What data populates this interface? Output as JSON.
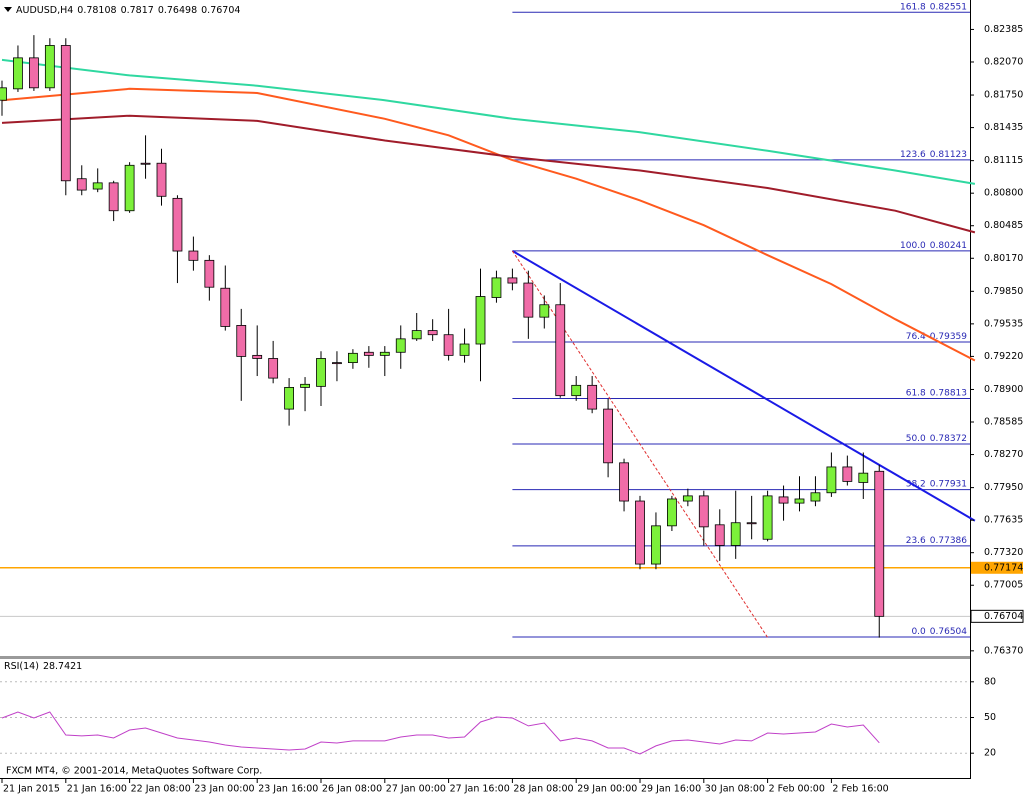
{
  "chart_data": {
    "type": "candlestick",
    "symbol": "AUDUSD,H4",
    "categories": [
      "21 Jan 2015",
      null,
      null,
      null,
      "21 Jan 16:00",
      null,
      null,
      null,
      "22 Jan 08:00",
      null,
      null,
      null,
      "23 Jan 00:00",
      null,
      null,
      null,
      "23 Jan 16:00",
      null,
      null,
      null,
      "26 Jan 08:00",
      null,
      null,
      null,
      "27 Jan 00:00",
      null,
      null,
      null,
      "27 Jan 16:00",
      null,
      null,
      null,
      "28 Jan 08:00",
      null,
      null,
      null,
      "29 Jan 00:00",
      null,
      null,
      null,
      "29 Jan 16:00",
      null,
      null,
      null,
      "30 Jan 08:00",
      null,
      null,
      null,
      "2 Feb 00:00",
      null,
      null,
      null,
      "2 Feb 16:00",
      null,
      null,
      null
    ],
    "open": [
      0.817,
      0.8181,
      0.8211,
      0.8182,
      0.8223,
      0.8094,
      0.8084,
      0.809,
      0.8063,
      0.8109,
      0.8109,
      0.8075,
      0.8024,
      0.8015,
      0.7988,
      0.7952,
      0.7923,
      0.792,
      0.7871,
      0.7892,
      0.7893,
      0.7916,
      0.7916,
      0.7926,
      0.7923,
      0.7926,
      0.7939,
      0.7947,
      0.7943,
      0.7923,
      0.7934,
      0.7979,
      0.7998,
      0.7993,
      0.796,
      0.7972,
      0.7884,
      0.7894,
      0.7871,
      0.7819,
      0.7782,
      0.7721,
      0.7758,
      0.7782,
      0.7787,
      0.7759,
      0.7739,
      0.7761,
      0.7745,
      0.7786,
      0.778,
      0.7782,
      0.779,
      0.7815,
      0.78,
      0.78108
    ],
    "high": [
      0.8189,
      0.8223,
      0.8233,
      0.823,
      0.823,
      0.8107,
      0.8104,
      0.8092,
      0.811,
      0.8136,
      0.8123,
      0.8078,
      0.8038,
      0.802,
      0.801,
      0.7968,
      0.7952,
      0.7937,
      0.7901,
      0.7902,
      0.7927,
      0.7927,
      0.7929,
      0.7932,
      0.7932,
      0.7952,
      0.7964,
      0.7958,
      0.7968,
      0.7949,
      0.8007,
      0.8005,
      0.8007,
      0.8005,
      0.7981,
      0.7993,
      0.7903,
      0.7903,
      0.7881,
      0.7823,
      0.7787,
      0.7771,
      0.7787,
      0.7794,
      0.7792,
      0.7774,
      0.7792,
      0.7787,
      0.7792,
      0.7797,
      0.7806,
      0.7806,
      0.7829,
      0.7826,
      0.7829,
      0.7817
    ],
    "low": [
      0.8155,
      0.8178,
      0.8179,
      0.8179,
      0.8078,
      0.8078,
      0.8081,
      0.8053,
      0.8061,
      0.8094,
      0.8068,
      0.7993,
      0.8005,
      0.7976,
      0.7947,
      0.7879,
      0.7903,
      0.7896,
      0.7855,
      0.7869,
      0.7874,
      0.7898,
      0.791,
      0.7911,
      0.7903,
      0.791,
      0.7937,
      0.7937,
      0.7918,
      0.7916,
      0.7898,
      0.7974,
      0.7986,
      0.7939,
      0.7949,
      0.7882,
      0.7879,
      0.7867,
      0.7805,
      0.7772,
      0.7716,
      0.7716,
      0.7753,
      0.7777,
      0.7739,
      0.7724,
      0.7726,
      0.7745,
      0.7743,
      0.7763,
      0.7772,
      0.7777,
      0.7786,
      0.7797,
      0.7784,
      0.76498
    ],
    "close": [
      0.8182,
      0.8211,
      0.8182,
      0.8223,
      0.8092,
      0.8083,
      0.809,
      0.8063,
      0.8107,
      0.8108,
      0.8077,
      0.8024,
      0.8015,
      0.7989,
      0.7951,
      0.7922,
      0.792,
      0.7901,
      0.7892,
      0.7895,
      0.792,
      0.7915,
      0.7925,
      0.7923,
      0.7926,
      0.7939,
      0.7947,
      0.7943,
      0.7923,
      0.7934,
      0.798,
      0.7998,
      0.7993,
      0.796,
      0.7972,
      0.7884,
      0.7894,
      0.7871,
      0.7819,
      0.7782,
      0.7721,
      0.7758,
      0.7784,
      0.7787,
      0.7757,
      0.7739,
      0.7761,
      0.776,
      0.7787,
      0.778,
      0.7784,
      0.779,
      0.7815,
      0.7801,
      0.7809,
      0.76704
    ],
    "up_color": "#7cf03a",
    "down_color": "#f06ca8",
    "ylim": [
      0.7632,
      0.8267
    ],
    "yticks": [
      0.82385,
      {
        "value": 0.8207,
        "label": "0.82070"
      },
      {
        "value": 0.8175,
        "label": "0.81750"
      },
      0.81435,
      0.81115,
      {
        "value": 0.808,
        "label": "0.80800"
      },
      0.80485,
      {
        "value": 0.8017,
        "label": "0.80170"
      },
      {
        "value": 0.7985,
        "label": "0.79850"
      },
      0.79535,
      {
        "value": 0.7922,
        "label": "0.79220"
      },
      {
        "value": 0.789,
        "label": "0.78900"
      },
      0.78585,
      {
        "value": 0.7827,
        "label": "0.78270"
      },
      {
        "value": 0.7795,
        "label": "0.77950"
      },
      0.77635,
      {
        "value": 0.7732,
        "label": "0.77320"
      },
      0.77005,
      {
        "value": 0.7637,
        "label": "0.76370"
      }
    ],
    "moving_averages": [
      {
        "color": "#2fd8a0",
        "x": [
          0,
          8,
          16,
          24,
          32,
          40,
          48,
          56,
          61
        ],
        "values": [
          0.8209,
          0.8194,
          0.8184,
          0.817,
          0.8152,
          0.8139,
          0.8121,
          0.8102,
          0.8089
        ]
      },
      {
        "color": "#ff5a1e",
        "x": [
          0,
          8,
          16,
          24,
          28,
          32,
          36,
          40,
          44,
          48,
          52,
          56,
          61
        ],
        "values": [
          0.817,
          0.8181,
          0.8177,
          0.8152,
          0.8136,
          0.8112,
          0.8094,
          0.8073,
          0.8049,
          0.802,
          0.7992,
          0.7958,
          0.7918
        ]
      },
      {
        "color": "#a01c2a",
        "x": [
          0,
          8,
          16,
          24,
          32,
          40,
          48,
          56,
          61
        ],
        "values": [
          0.8148,
          0.8155,
          0.815,
          0.8131,
          0.8115,
          0.8102,
          0.8085,
          0.8063,
          0.8042
        ]
      }
    ],
    "trendlines": [
      {
        "color": "#1a1ae6",
        "dashed": false,
        "x": [
          32,
          61
        ],
        "values": [
          0.80241,
          0.7763
        ]
      },
      {
        "color": "#e03030",
        "dashed": true,
        "x": [
          32,
          48
        ],
        "values": [
          0.80241,
          0.765
        ]
      }
    ],
    "fibonacci": {
      "color": "#2828b4",
      "start": 32,
      "levels": [
        {
          "level": "161.8",
          "price": 0.82551
        },
        {
          "level": "123.6",
          "price": 0.81123
        },
        {
          "level": "100.0",
          "price": 0.80241
        },
        {
          "level": "76.4",
          "price": 0.79359
        },
        {
          "level": "61.8",
          "price": 0.78813
        },
        {
          "level": "50.0",
          "price": 0.78372
        },
        {
          "level": "38.2",
          "price": 0.77931
        },
        {
          "level": "23.6",
          "price": 0.77386
        },
        {
          "level": "0.0",
          "price": 0.76504
        }
      ]
    },
    "hline": {
      "value": 0.77174,
      "color": "#ffa500"
    },
    "rsi": {
      "label": "RSI(14)",
      "color": "#c040c8",
      "ylim": [
        0,
        100
      ],
      "yticks": [
        80,
        50,
        20
      ],
      "values": [
        49.6,
        54.6,
        49.6,
        54.6,
        35.3,
        34.5,
        35.3,
        32.8,
        39.5,
        41.2,
        37.0,
        32.8,
        31.1,
        29.4,
        26.9,
        25.2,
        24.4,
        23.5,
        22.7,
        23.5,
        29.4,
        28.6,
        30.3,
        30.3,
        30.3,
        33.6,
        35.3,
        35.3,
        32.8,
        33.6,
        46.2,
        50.4,
        49.6,
        42.9,
        45.4,
        30.3,
        32.8,
        30.3,
        24.4,
        24.4,
        19.3,
        26.1,
        30.3,
        31.1,
        29.4,
        27.7,
        31.1,
        30.3,
        37.0,
        36.1,
        37.0,
        37.8,
        44.5,
        42.0,
        43.7,
        28.7421
      ]
    },
    "copyright": "FXCM MT4, © 2001-2014, MetaQuotes Software Corp."
  }
}
